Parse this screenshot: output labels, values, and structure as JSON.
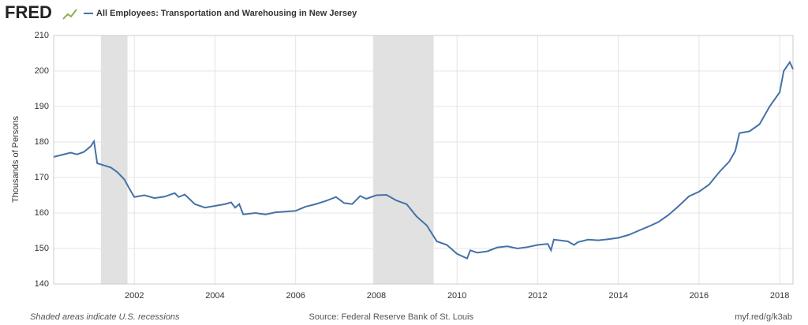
{
  "chart_data": {
    "type": "line",
    "logo": "FRED",
    "title": "All Employees: Transportation and Warehousing in New Jersey",
    "y_label": "Thousands of Persons",
    "note": "Shaded areas indicate U.S. recessions",
    "source": "Source: Federal Reserve Bank of St. Louis",
    "link": "myf.red/g/k3ab",
    "xlim": [
      2000,
      2018.33
    ],
    "ylim": [
      140,
      210
    ],
    "xticks": [
      2002,
      2004,
      2006,
      2008,
      2010,
      2012,
      2014,
      2016,
      2018
    ],
    "yticks": [
      140,
      150,
      160,
      170,
      180,
      190,
      200,
      210
    ],
    "grid": true,
    "recession_color": "#e1e1e1",
    "recessions": [
      [
        2001.17,
        2001.83
      ],
      [
        2007.92,
        2009.42
      ]
    ],
    "x": [
      2000.0,
      2000.25,
      2000.42,
      2000.58,
      2000.75,
      2000.92,
      2001.0,
      2001.08,
      2001.25,
      2001.42,
      2001.58,
      2001.75,
      2001.92,
      2002.0,
      2002.25,
      2002.5,
      2002.75,
      2003.0,
      2003.1,
      2003.25,
      2003.5,
      2003.75,
      2004.0,
      2004.25,
      2004.4,
      2004.5,
      2004.6,
      2004.7,
      2005.0,
      2005.25,
      2005.5,
      2005.75,
      2006.0,
      2006.25,
      2006.5,
      2006.75,
      2007.0,
      2007.2,
      2007.4,
      2007.6,
      2007.75,
      2008.0,
      2008.25,
      2008.5,
      2008.75,
      2009.0,
      2009.25,
      2009.5,
      2009.75,
      2010.0,
      2010.25,
      2010.33,
      2010.5,
      2010.75,
      2011.0,
      2011.25,
      2011.5,
      2011.75,
      2012.0,
      2012.25,
      2012.33,
      2012.4,
      2012.75,
      2012.9,
      2013.0,
      2013.25,
      2013.5,
      2013.75,
      2014.0,
      2014.25,
      2014.5,
      2014.75,
      2015.0,
      2015.25,
      2015.5,
      2015.75,
      2016.0,
      2016.25,
      2016.5,
      2016.75,
      2016.9,
      2017.0,
      2017.25,
      2017.5,
      2017.75,
      2018.0,
      2018.1,
      2018.25,
      2018.33
    ],
    "series": [
      {
        "name": "All Employees: Transportation and Warehousing in New Jersey",
        "color": "#4572a7",
        "values": [
          175.8,
          176.5,
          177.0,
          176.5,
          177.2,
          178.8,
          180.2,
          174.0,
          173.4,
          172.8,
          171.5,
          169.5,
          166.0,
          164.5,
          165.0,
          164.2,
          164.6,
          165.6,
          164.5,
          165.2,
          162.5,
          161.5,
          162.0,
          162.5,
          163.0,
          161.5,
          162.5,
          159.6,
          160.0,
          159.6,
          160.2,
          160.4,
          160.6,
          161.8,
          162.5,
          163.4,
          164.5,
          162.8,
          162.5,
          164.8,
          164.0,
          165.0,
          165.1,
          163.5,
          162.5,
          159.0,
          156.5,
          152.0,
          151.0,
          148.5,
          147.2,
          149.5,
          148.8,
          149.2,
          150.3,
          150.6,
          150.0,
          150.4,
          151.0,
          151.3,
          149.5,
          152.5,
          152.0,
          151.0,
          151.8,
          152.5,
          152.3,
          152.6,
          153.0,
          153.8,
          155.0,
          156.2,
          157.5,
          159.5,
          162.0,
          164.7,
          166.0,
          168.0,
          171.5,
          174.5,
          177.5,
          182.5,
          183.0,
          185.0,
          190.0,
          194.0,
          200.0,
          202.5,
          200.5
        ]
      }
    ]
  }
}
